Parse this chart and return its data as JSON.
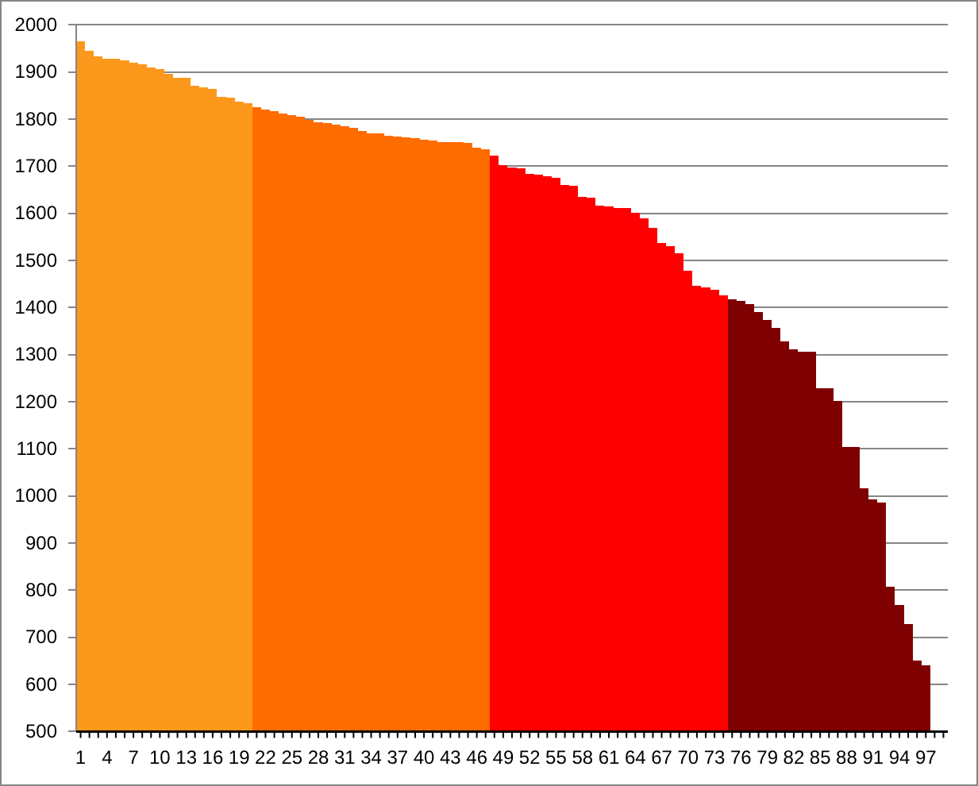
{
  "chart_data": {
    "type": "bar",
    "categories": [
      "1",
      null,
      null,
      "4",
      null,
      null,
      "7",
      null,
      null,
      "10",
      null,
      null,
      "13",
      null,
      null,
      "16",
      null,
      null,
      "19",
      null,
      null,
      "22",
      null,
      null,
      "25",
      null,
      null,
      "28",
      null,
      null,
      "31",
      null,
      null,
      "34",
      null,
      null,
      "37",
      null,
      null,
      "40",
      null,
      null,
      "43",
      null,
      null,
      "46",
      null,
      null,
      "49",
      null,
      null,
      "52",
      null,
      null,
      "55",
      null,
      null,
      "58",
      null,
      null,
      "61",
      null,
      null,
      "64",
      null,
      null,
      "67",
      null,
      null,
      "70",
      null,
      null,
      "73",
      null,
      null,
      "76",
      null,
      null,
      "79",
      null,
      null,
      "82",
      null,
      null,
      "85",
      null,
      null,
      "88",
      null,
      null,
      "91",
      null,
      null,
      "94",
      null,
      null,
      "97",
      null,
      null
    ],
    "values": [
      1966,
      1945,
      1933,
      1929,
      1928,
      1925,
      1920,
      1916,
      1910,
      1906,
      1896,
      1888,
      1888,
      1871,
      1867,
      1864,
      1848,
      1846,
      1837,
      1834,
      1825,
      1820,
      1817,
      1812,
      1808,
      1805,
      1798,
      1794,
      1792,
      1789,
      1785,
      1782,
      1774,
      1770,
      1769,
      1764,
      1763,
      1761,
      1760,
      1756,
      1755,
      1752,
      1752,
      1752,
      1749,
      1740,
      1736,
      1722,
      1702,
      1697,
      1696,
      1683,
      1682,
      1679,
      1675,
      1660,
      1658,
      1635,
      1633,
      1617,
      1615,
      1612,
      1611,
      1601,
      1590,
      1570,
      1538,
      1530,
      1516,
      1478,
      1446,
      1443,
      1437,
      1426,
      1417,
      1415,
      1408,
      1391,
      1374,
      1357,
      1328,
      1312,
      1307,
      1307,
      1229,
      1229,
      1201,
      1104,
      1104,
      1016,
      992,
      986,
      808,
      769,
      728,
      651,
      641,
      null,
      null
    ],
    "colors": [
      "#fc981c",
      "#fc981c",
      "#fc981c",
      "#fc981c",
      "#fc981c",
      "#fc981c",
      "#fc981c",
      "#fc981c",
      "#fc981c",
      "#fc981c",
      "#fc981c",
      "#fc981c",
      "#fc981c",
      "#fc981c",
      "#fc981c",
      "#fc981c",
      "#fc981c",
      "#fc981c",
      "#fc981c",
      "#fc981c",
      "#ff6c00",
      "#ff6c00",
      "#ff6c00",
      "#ff6c00",
      "#ff6c00",
      "#ff6c00",
      "#ff6c00",
      "#ff6c00",
      "#ff6c00",
      "#ff6c00",
      "#ff6c00",
      "#ff6c00",
      "#ff6c00",
      "#ff6c00",
      "#ff6c00",
      "#ff6c00",
      "#ff6c00",
      "#ff6c00",
      "#ff6c00",
      "#ff6c00",
      "#ff6c00",
      "#ff6c00",
      "#ff6c00",
      "#ff6c00",
      "#ff6c00",
      "#ff6c00",
      "#ff6c00",
      "#ff0000",
      "#ff0000",
      "#ff0000",
      "#ff0000",
      "#ff0000",
      "#ff0000",
      "#ff0000",
      "#ff0000",
      "#ff0000",
      "#ff0000",
      "#ff0000",
      "#ff0000",
      "#ff0000",
      "#ff0000",
      "#ff0000",
      "#ff0000",
      "#ff0000",
      "#ff0000",
      "#ff0000",
      "#ff0000",
      "#ff0000",
      "#ff0000",
      "#ff0000",
      "#ff0000",
      "#ff0000",
      "#ff0000",
      "#ff0000",
      "#7f0000",
      "#7f0000",
      "#7f0000",
      "#7f0000",
      "#7f0000",
      "#7f0000",
      "#7f0000",
      "#7f0000",
      "#7f0000",
      "#7f0000",
      "#7f0000",
      "#7f0000",
      "#7f0000",
      "#7f0000",
      "#7f0000",
      "#7f0000",
      "#7f0000",
      "#7f0000",
      "#7f0000",
      "#7f0000",
      "#7f0000",
      "#7f0000",
      "#7f0000",
      "#7f0000",
      "#7f0000"
    ],
    "ylim": [
      500,
      2000
    ],
    "yticks": [
      500,
      600,
      700,
      800,
      900,
      1000,
      1100,
      1200,
      1300,
      1400,
      1500,
      1600,
      1700,
      1800,
      1900,
      2000
    ],
    "grid": "y"
  }
}
